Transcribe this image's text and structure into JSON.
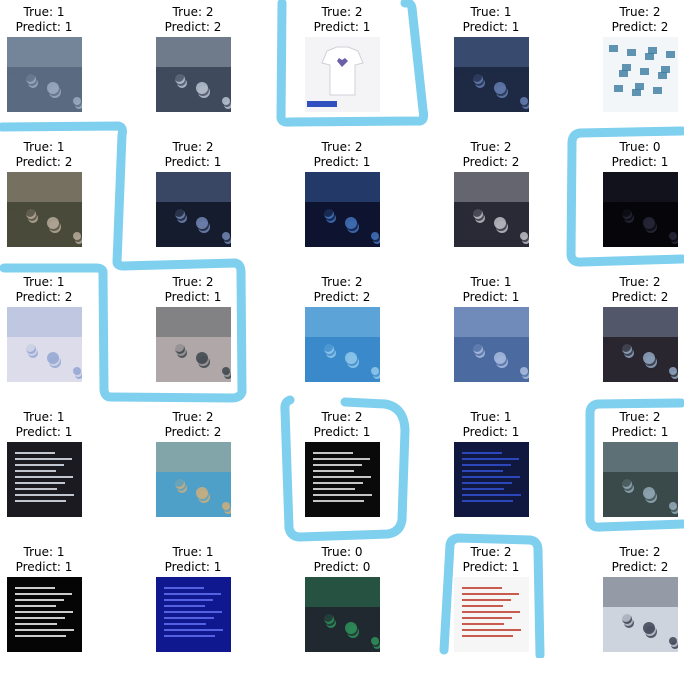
{
  "labels": {
    "true_prefix": "True: ",
    "pred_prefix": "Predict: "
  },
  "highlight_color": "#7fcfee",
  "cells": [
    {
      "true": "1",
      "pred": "1",
      "scene": "crowd-tent-photo",
      "colors": [
        "#5a6a80",
        "#a6b4c8"
      ]
    },
    {
      "true": "2",
      "pred": "2",
      "scene": "street-sign-crowd",
      "colors": [
        "#3f4a5c",
        "#c9d3e0"
      ]
    },
    {
      "true": "2",
      "pred": "1",
      "scene": "tshirt-product-image",
      "colors": [
        "#f4f4f6",
        "#6b5fa8"
      ]
    },
    {
      "true": "1",
      "pred": "1",
      "scene": "dark-crowd-photo",
      "colors": [
        "#1e2a44",
        "#6d88c0"
      ]
    },
    {
      "true": "2",
      "pred": "2",
      "scene": "map-graphic",
      "colors": [
        "#f2f6f8",
        "#3a7aa0"
      ]
    },
    {
      "true": "1",
      "pred": "2",
      "scene": "selfie-two-people",
      "colors": [
        "#4a4a3a",
        "#c7b8a8"
      ]
    },
    {
      "true": "2",
      "pred": "1",
      "scene": "night-crowd",
      "colors": [
        "#141c2e",
        "#7f95c8"
      ]
    },
    {
      "true": "2",
      "pred": "1",
      "scene": "stage-lights",
      "colors": [
        "#0e1430",
        "#4a7fd0"
      ]
    },
    {
      "true": "2",
      "pred": "2",
      "scene": "protest-march",
      "colors": [
        "#2a2a36",
        "#d0d4da"
      ]
    },
    {
      "true": "0",
      "pred": "1",
      "scene": "dark-interior",
      "colors": [
        "#05050a",
        "#2c2c40"
      ]
    },
    {
      "true": "1",
      "pred": "2",
      "scene": "bright-selfie",
      "colors": [
        "#dcdcea",
        "#8aa0d0"
      ]
    },
    {
      "true": "2",
      "pred": "1",
      "scene": "monument-crowd",
      "colors": [
        "#b0a8a8",
        "#2e3a40"
      ]
    },
    {
      "true": "2",
      "pred": "2",
      "scene": "blue-crowd-aerial",
      "colors": [
        "#3a8acb",
        "#9dd0f0"
      ]
    },
    {
      "true": "1",
      "pred": "1",
      "scene": "blue-smoke-street",
      "colors": [
        "#4a6aa0",
        "#b8c8e8"
      ]
    },
    {
      "true": "2",
      "pred": "2",
      "scene": "street-gathering",
      "colors": [
        "#2a2630",
        "#9fb8d6"
      ]
    },
    {
      "true": "1",
      "pred": "1",
      "scene": "text-poster-dark",
      "colors": [
        "#1a1a20",
        "#dfe4ee"
      ]
    },
    {
      "true": "2",
      "pred": "2",
      "scene": "sunset-crowd",
      "colors": [
        "#4fa0c8",
        "#e0b070"
      ]
    },
    {
      "true": "2",
      "pred": "1",
      "scene": "text-document-dark",
      "colors": [
        "#0a0a0a",
        "#e8e8e8"
      ]
    },
    {
      "true": "1",
      "pred": "1",
      "scene": "navy-text-poster",
      "colors": [
        "#101840",
        "#3050d0"
      ]
    },
    {
      "true": "2",
      "pred": "1",
      "scene": "tree-street-crowd",
      "colors": [
        "#3a4a4a",
        "#a0b8c8"
      ]
    },
    {
      "true": "1",
      "pred": "1",
      "scene": "text-poster-black",
      "colors": [
        "#050505",
        "#f0f0f0"
      ]
    },
    {
      "true": "1",
      "pred": "1",
      "scene": "blue-news-graphic",
      "colors": [
        "#101890",
        "#6070f0"
      ]
    },
    {
      "true": "0",
      "pred": "0",
      "scene": "screen-collage",
      "colors": [
        "#202830",
        "#30a060"
      ]
    },
    {
      "true": "2",
      "pred": "1",
      "scene": "text-document-white",
      "colors": [
        "#f6f6f6",
        "#c04030"
      ]
    },
    {
      "true": "2",
      "pred": "2",
      "scene": "people-standing",
      "colors": [
        "#cdd4de",
        "#2a3040"
      ]
    }
  ]
}
